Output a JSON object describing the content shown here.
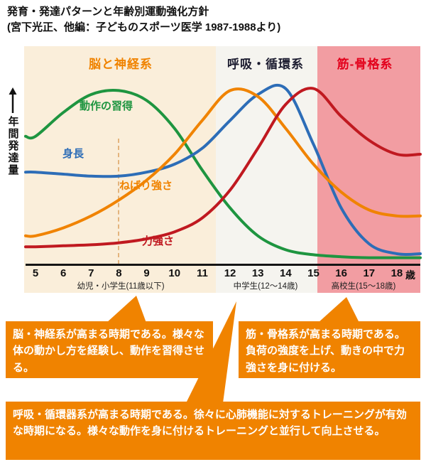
{
  "title": {
    "line1": "発育・発達パターンと年齢別運動強化方針",
    "line2": "(宮下光正、他編：子どものスポーツ医学 1987-1988より)"
  },
  "colors": {
    "callout_bg": "#f08300",
    "axis": "#151515"
  },
  "chart_data": {
    "type": "line",
    "title": "発育・発達パターンと年齢別運動強化方針",
    "ylabel": "年間発達量",
    "x_unit": "歳",
    "x": [
      5,
      6,
      7,
      8,
      9,
      10,
      11,
      12,
      13,
      14,
      15,
      16,
      17,
      18
    ],
    "ylim": [
      0,
      1
    ],
    "grid": false,
    "legend_position": "on-curve labels",
    "series": [
      {
        "name": "動作の習得",
        "color": "#1e9540",
        "values": [
          0.64,
          0.76,
          0.85,
          0.87,
          0.82,
          0.68,
          0.47,
          0.28,
          0.14,
          0.07,
          0.045,
          0.035,
          0.03,
          0.03
        ]
      },
      {
        "name": "身長",
        "color": "#2d6db7",
        "values": [
          0.46,
          0.45,
          0.44,
          0.44,
          0.46,
          0.5,
          0.58,
          0.72,
          0.85,
          0.88,
          0.6,
          0.28,
          0.1,
          0.05
        ]
      },
      {
        "name": "ねばり強さ",
        "color": "#f08300",
        "values": [
          0.14,
          0.18,
          0.24,
          0.32,
          0.42,
          0.55,
          0.72,
          0.87,
          0.84,
          0.68,
          0.5,
          0.36,
          0.27,
          0.24
        ]
      },
      {
        "name": "力強さ",
        "color": "#c01920",
        "values": [
          0.085,
          0.09,
          0.095,
          0.105,
          0.125,
          0.16,
          0.23,
          0.37,
          0.58,
          0.8,
          0.88,
          0.74,
          0.62,
          0.55
        ]
      }
    ],
    "regions": [
      {
        "header": "脳と神経系",
        "header_color": "#f08300",
        "band_color": "#faeeda",
        "sub_label": "幼児・小学生(11歳以下)",
        "age_range": "5-11"
      },
      {
        "header": "呼吸・循環系",
        "header_color": "#1b1b2f",
        "band_color": "#f5f4ef",
        "sub_label": "中学生(12～14歳)",
        "age_range": "12-15"
      },
      {
        "header": "筋-骨格系",
        "header_color": "#e3001b",
        "band_color": "#f29da2",
        "sub_label": "高校生(15～18歳)",
        "age_range": "15-18"
      }
    ]
  },
  "callouts": [
    {
      "text": "脳・神経系が高まる時期である。様々な体の動かし方を経験し、動作を習得させる。"
    },
    {
      "text": "筋・骨格系が高まる時期である。負荷の強度を上げ、動きの中で力強さを身に付ける。"
    },
    {
      "text": "呼吸・循環器系が高まる時期である。徐々に心肺機能に対するトレーニングが有効な時期になる。様々な動作を身に付けるトレーニングと並行して向上させる。"
    }
  ]
}
